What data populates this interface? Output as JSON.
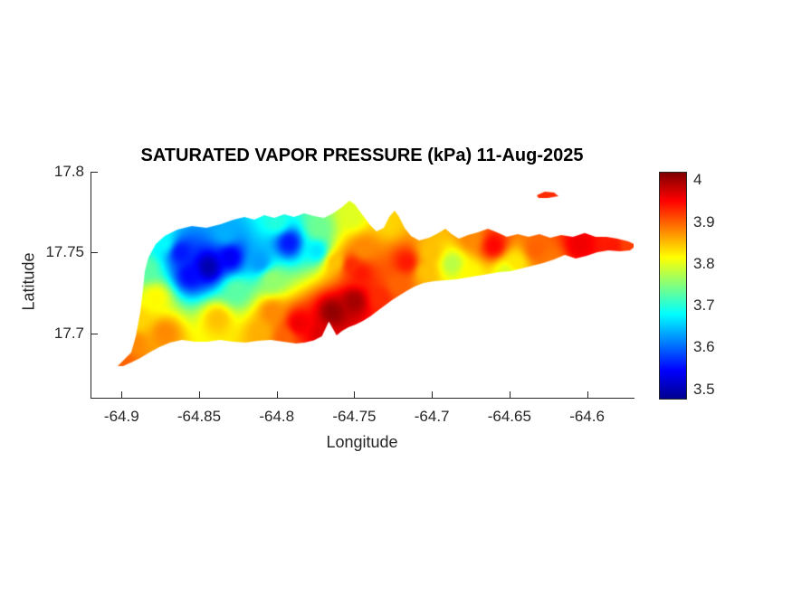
{
  "figure": {
    "title": "SATURATED VAPOR PRESSURE (kPa) 11-Aug-2025",
    "xlabel": "Longitude",
    "ylabel": "Latitude",
    "background": "#ffffff",
    "axis_color": "#262626"
  },
  "chart_data": {
    "type": "heatmap",
    "title": "SATURATED VAPOR PRESSURE (kPa) 11-Aug-2025",
    "date": "11-Aug-2025",
    "unit": "kPa",
    "xlabel": "Longitude",
    "ylabel": "Latitude",
    "xlim": [
      -64.92,
      -64.57
    ],
    "ylim": [
      17.66,
      17.8
    ],
    "value_range": [
      3.48,
      4.02
    ],
    "grid": false,
    "legend": "none",
    "colorbar_location": "right",
    "idw_power": 3,
    "x_ticks": [
      {
        "value": -64.9,
        "label": "-64.9"
      },
      {
        "value": -64.85,
        "label": "-64.85"
      },
      {
        "value": -64.8,
        "label": "-64.8"
      },
      {
        "value": -64.75,
        "label": "-64.75"
      },
      {
        "value": -64.7,
        "label": "-64.7"
      },
      {
        "value": -64.65,
        "label": "-64.65"
      },
      {
        "value": -64.6,
        "label": "-64.6"
      }
    ],
    "y_ticks": [
      {
        "value": 17.8,
        "label": "17.8"
      },
      {
        "value": 17.75,
        "label": "17.75"
      },
      {
        "value": 17.7,
        "label": "17.7"
      }
    ],
    "colorbar": {
      "ticks": [
        {
          "value": 4.0,
          "label": "4"
        },
        {
          "value": 3.9,
          "label": "3.9"
        },
        {
          "value": 3.8,
          "label": "3.8"
        },
        {
          "value": 3.7,
          "label": "3.7"
        },
        {
          "value": 3.6,
          "label": "3.6"
        },
        {
          "value": 3.5,
          "label": "3.5"
        }
      ]
    },
    "colormap": {
      "name": "jet",
      "stops": [
        [
          0.0,
          [
            0,
            0,
            143
          ]
        ],
        [
          0.125,
          [
            0,
            0,
            255
          ]
        ],
        [
          0.375,
          [
            0,
            255,
            255
          ]
        ],
        [
          0.625,
          [
            255,
            255,
            0
          ]
        ],
        [
          0.875,
          [
            255,
            0,
            0
          ]
        ],
        [
          1.0,
          [
            128,
            0,
            0
          ]
        ]
      ]
    },
    "island_outline": [
      [
        -64.9025,
        17.6796
      ],
      [
        -64.8938,
        17.688
      ],
      [
        -64.8908,
        17.6981
      ],
      [
        -64.8879,
        17.7132
      ],
      [
        -64.8862,
        17.7272
      ],
      [
        -64.885,
        17.7384
      ],
      [
        -64.8827,
        17.7468
      ],
      [
        -64.878,
        17.7552
      ],
      [
        -64.8722,
        17.7602
      ],
      [
        -64.864,
        17.7642
      ],
      [
        -64.8547,
        17.7664
      ],
      [
        -64.8453,
        17.7653
      ],
      [
        -64.836,
        17.7675
      ],
      [
        -64.8278,
        17.7703
      ],
      [
        -64.8208,
        17.772
      ],
      [
        -64.8144,
        17.7703
      ],
      [
        -64.808,
        17.7731
      ],
      [
        -64.8016,
        17.7714
      ],
      [
        -64.7952,
        17.7737
      ],
      [
        -64.7888,
        17.772
      ],
      [
        -64.7823,
        17.7742
      ],
      [
        -64.7759,
        17.7726
      ],
      [
        -64.7695,
        17.7714
      ],
      [
        -64.7637,
        17.7742
      ],
      [
        -64.7578,
        17.7782
      ],
      [
        -64.7532,
        17.7821
      ],
      [
        -64.7497,
        17.7798
      ],
      [
        -64.7468,
        17.7759
      ],
      [
        -64.7433,
        17.7714
      ],
      [
        -64.7398,
        17.767
      ],
      [
        -64.7357,
        17.763
      ],
      [
        -64.731,
        17.7653
      ],
      [
        -64.7275,
        17.772
      ],
      [
        -64.724,
        17.7759
      ],
      [
        -64.7211,
        17.772
      ],
      [
        -64.7176,
        17.7653
      ],
      [
        -64.7135,
        17.7602
      ],
      [
        -64.7082,
        17.7574
      ],
      [
        -64.7018,
        17.7591
      ],
      [
        -64.696,
        17.7619
      ],
      [
        -64.6913,
        17.7647
      ],
      [
        -64.6872,
        17.7614
      ],
      [
        -64.6826,
        17.7586
      ],
      [
        -64.6767,
        17.7608
      ],
      [
        -64.6703,
        17.7625
      ],
      [
        -64.6639,
        17.7647
      ],
      [
        -64.6581,
        17.7625
      ],
      [
        -64.6517,
        17.7597
      ],
      [
        -64.6447,
        17.7614
      ],
      [
        -64.6377,
        17.7597
      ],
      [
        -64.6307,
        17.7614
      ],
      [
        -64.6237,
        17.7591
      ],
      [
        -64.6167,
        17.7608
      ],
      [
        -64.6091,
        17.7597
      ],
      [
        -64.6015,
        17.762
      ],
      [
        -64.5945,
        17.7597
      ],
      [
        -64.5875,
        17.7597
      ],
      [
        -64.5805,
        17.7586
      ],
      [
        -64.5735,
        17.7569
      ],
      [
        -64.5682,
        17.7546
      ],
      [
        -64.5723,
        17.7513
      ],
      [
        -64.5787,
        17.7507
      ],
      [
        -64.5863,
        17.7513
      ],
      [
        -64.5933,
        17.7502
      ],
      [
        -64.6003,
        17.7479
      ],
      [
        -64.6073,
        17.7462
      ],
      [
        -64.6143,
        17.7485
      ],
      [
        -64.6213,
        17.7457
      ],
      [
        -64.6283,
        17.7434
      ],
      [
        -64.6353,
        17.7418
      ],
      [
        -64.6423,
        17.7401
      ],
      [
        -64.6493,
        17.7384
      ],
      [
        -64.6563,
        17.7378
      ],
      [
        -64.6633,
        17.7367
      ],
      [
        -64.6703,
        17.7356
      ],
      [
        -64.6773,
        17.7345
      ],
      [
        -64.6843,
        17.7334
      ],
      [
        -64.6913,
        17.7328
      ],
      [
        -64.6983,
        17.7322
      ],
      [
        -64.7053,
        17.7311
      ],
      [
        -64.7112,
        17.7289
      ],
      [
        -64.7164,
        17.7261
      ],
      [
        -64.7211,
        17.7233
      ],
      [
        -64.7257,
        17.7205
      ],
      [
        -64.7304,
        17.7171
      ],
      [
        -64.7351,
        17.7138
      ],
      [
        -64.7397,
        17.7104
      ],
      [
        -64.7444,
        17.7076
      ],
      [
        -64.7491,
        17.7054
      ],
      [
        -64.7537,
        17.7037
      ],
      [
        -64.7578,
        17.7014
      ],
      [
        -64.7614,
        17.6986
      ],
      [
        -64.7664,
        17.7072
      ],
      [
        -64.7709,
        17.6981
      ],
      [
        -64.776,
        17.6956
      ],
      [
        -64.782,
        17.6942
      ],
      [
        -64.7876,
        17.6936
      ],
      [
        -64.7957,
        17.6947
      ],
      [
        -64.8039,
        17.6958
      ],
      [
        -64.8121,
        17.6953
      ],
      [
        -64.8202,
        17.6942
      ],
      [
        -64.8284,
        17.6947
      ],
      [
        -64.8366,
        17.6958
      ],
      [
        -64.8447,
        17.6947
      ],
      [
        -64.8529,
        17.6947
      ],
      [
        -64.8611,
        17.6958
      ],
      [
        -64.8687,
        17.6942
      ],
      [
        -64.8757,
        17.6914
      ],
      [
        -64.8821,
        17.688
      ],
      [
        -64.8879,
        17.6846
      ],
      [
        -64.8938,
        17.6818
      ],
      [
        -64.899,
        17.6796
      ]
    ],
    "islets": [
      [
        [
          -64.6324,
          17.7854
        ],
        [
          -64.6272,
          17.7877
        ],
        [
          -64.6213,
          17.7871
        ],
        [
          -64.6184,
          17.7849
        ],
        [
          -64.6254,
          17.7838
        ],
        [
          -64.6313,
          17.7838
        ]
      ]
    ],
    "samples": [
      [
        -64.844,
        17.741,
        3.5
      ],
      [
        -64.862,
        17.75,
        3.56
      ],
      [
        -64.83,
        17.747,
        3.54
      ],
      [
        -64.856,
        17.736,
        3.55
      ],
      [
        -64.792,
        17.756,
        3.56
      ],
      [
        -64.811,
        17.744,
        3.63
      ],
      [
        -64.774,
        17.751,
        3.67
      ],
      [
        -64.833,
        17.762,
        3.64
      ],
      [
        -64.884,
        17.74,
        3.73
      ],
      [
        -64.878,
        17.722,
        3.82
      ],
      [
        -64.898,
        17.682,
        3.9
      ],
      [
        -64.892,
        17.694,
        3.88
      ],
      [
        -64.89,
        17.708,
        3.84
      ],
      [
        -64.838,
        17.709,
        3.85
      ],
      [
        -64.81,
        17.7,
        3.86
      ],
      [
        -64.803,
        17.713,
        3.88
      ],
      [
        -64.786,
        17.706,
        3.96
      ],
      [
        -64.795,
        17.697,
        3.9
      ],
      [
        -64.872,
        17.7,
        3.88
      ],
      [
        -64.764,
        17.713,
        4.01
      ],
      [
        -64.75,
        17.72,
        4.0
      ],
      [
        -64.746,
        17.737,
        3.94
      ],
      [
        -64.752,
        17.742,
        3.93
      ],
      [
        -64.762,
        17.744,
        3.85
      ],
      [
        -64.744,
        17.752,
        3.88
      ],
      [
        -64.751,
        17.772,
        3.8
      ],
      [
        -64.773,
        17.765,
        3.74
      ],
      [
        -64.8,
        17.769,
        3.7
      ],
      [
        -64.728,
        17.768,
        3.84
      ],
      [
        -64.716,
        17.744,
        3.94
      ],
      [
        -64.733,
        17.722,
        3.93
      ],
      [
        -64.722,
        17.73,
        3.9
      ],
      [
        -64.704,
        17.738,
        3.85
      ],
      [
        -64.701,
        17.75,
        3.85
      ],
      [
        -64.687,
        17.743,
        3.78
      ],
      [
        -64.675,
        17.737,
        3.82
      ],
      [
        -64.675,
        17.759,
        3.88
      ],
      [
        -64.66,
        17.754,
        3.95
      ],
      [
        -64.652,
        17.738,
        3.8
      ],
      [
        -64.646,
        17.744,
        3.83
      ],
      [
        -64.633,
        17.752,
        3.9
      ],
      [
        -64.623,
        17.745,
        3.89
      ],
      [
        -64.605,
        17.755,
        3.96
      ],
      [
        -64.583,
        17.754,
        3.94
      ],
      [
        -64.574,
        17.755,
        3.92
      ],
      [
        -64.803,
        17.733,
        3.76
      ],
      [
        -64.826,
        17.726,
        3.73
      ],
      [
        -64.771,
        17.699,
        3.97
      ],
      [
        -64.625,
        17.785,
        3.93
      ],
      [
        -64.873,
        17.756,
        3.68
      ],
      [
        -64.879,
        17.76,
        3.7
      ]
    ]
  }
}
